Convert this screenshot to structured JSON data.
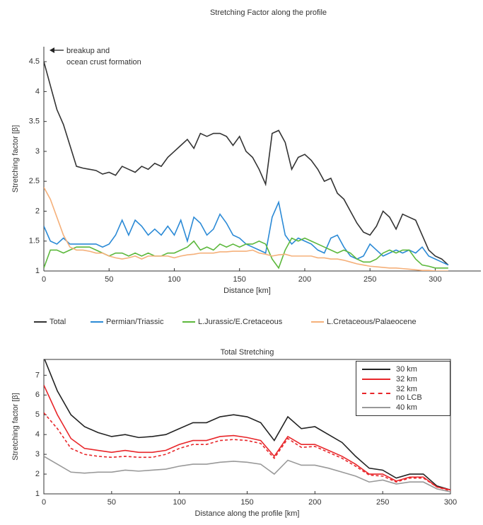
{
  "chart_data": [
    {
      "type": "line",
      "title": "Stretching Factor along the profile",
      "xlabel": "Distance  [km]",
      "ylabel": "Stretching factor [β]",
      "annotation": [
        "breakup and",
        "ocean crust formation"
      ],
      "xlim": [
        0,
        335
      ],
      "ylim": [
        1,
        4.75
      ],
      "xticks": [
        0,
        50,
        100,
        150,
        200,
        250,
        300
      ],
      "yticks": [
        1,
        1.5,
        2,
        2.5,
        3,
        3.5,
        4,
        4.5
      ],
      "legend": "below",
      "x": [
        0,
        5,
        10,
        15,
        20,
        25,
        30,
        35,
        40,
        45,
        50,
        55,
        60,
        65,
        70,
        75,
        80,
        85,
        90,
        95,
        100,
        105,
        110,
        115,
        120,
        125,
        130,
        135,
        140,
        145,
        150,
        155,
        160,
        165,
        170,
        175,
        180,
        185,
        190,
        195,
        200,
        205,
        210,
        215,
        220,
        225,
        230,
        235,
        240,
        245,
        250,
        255,
        260,
        265,
        270,
        275,
        280,
        285,
        290,
        295,
        300,
        305,
        310
      ],
      "series": [
        {
          "name": "Total",
          "color": "#333333",
          "values": [
            4.5,
            4.1,
            3.7,
            3.45,
            3.1,
            2.75,
            2.72,
            2.7,
            2.68,
            2.62,
            2.65,
            2.6,
            2.75,
            2.7,
            2.65,
            2.75,
            2.7,
            2.8,
            2.75,
            2.9,
            3.0,
            3.1,
            3.2,
            3.05,
            3.3,
            3.25,
            3.3,
            3.3,
            3.25,
            3.1,
            3.25,
            3.0,
            2.9,
            2.7,
            2.45,
            3.3,
            3.35,
            3.15,
            2.7,
            2.9,
            2.95,
            2.85,
            2.7,
            2.5,
            2.55,
            2.3,
            2.2,
            2.0,
            1.8,
            1.65,
            1.6,
            1.75,
            2.0,
            1.9,
            1.7,
            1.95,
            1.9,
            1.85,
            1.6,
            1.35,
            1.25,
            1.2,
            1.1
          ]
        },
        {
          "name": "Permian/Triassic",
          "color": "#2b8ad6",
          "values": [
            1.75,
            1.5,
            1.45,
            1.55,
            1.45,
            1.45,
            1.45,
            1.45,
            1.45,
            1.4,
            1.45,
            1.6,
            1.85,
            1.6,
            1.85,
            1.75,
            1.6,
            1.7,
            1.6,
            1.75,
            1.6,
            1.85,
            1.5,
            1.9,
            1.8,
            1.6,
            1.7,
            1.95,
            1.8,
            1.6,
            1.55,
            1.45,
            1.4,
            1.35,
            1.3,
            1.9,
            2.15,
            1.6,
            1.45,
            1.55,
            1.5,
            1.45,
            1.35,
            1.3,
            1.55,
            1.6,
            1.4,
            1.25,
            1.2,
            1.25,
            1.45,
            1.35,
            1.25,
            1.3,
            1.35,
            1.3,
            1.35,
            1.3,
            1.4,
            1.25,
            1.2,
            1.15,
            1.1
          ]
        },
        {
          "name": "L.Jurassic/E.Cretaceous",
          "color": "#5cb83c",
          "values": [
            1.05,
            1.35,
            1.35,
            1.3,
            1.35,
            1.4,
            1.4,
            1.4,
            1.35,
            1.3,
            1.25,
            1.3,
            1.3,
            1.25,
            1.3,
            1.25,
            1.3,
            1.25,
            1.25,
            1.3,
            1.3,
            1.35,
            1.4,
            1.5,
            1.35,
            1.4,
            1.35,
            1.45,
            1.4,
            1.45,
            1.4,
            1.45,
            1.45,
            1.5,
            1.45,
            1.2,
            1.05,
            1.35,
            1.55,
            1.5,
            1.55,
            1.5,
            1.45,
            1.4,
            1.35,
            1.3,
            1.35,
            1.3,
            1.2,
            1.15,
            1.15,
            1.2,
            1.3,
            1.35,
            1.3,
            1.35,
            1.35,
            1.2,
            1.1,
            1.08,
            1.05,
            1.05,
            1.05
          ]
        },
        {
          "name": "L.Cretaceous/Palaeocene",
          "color": "#f5b07a",
          "values": [
            2.4,
            2.2,
            1.9,
            1.6,
            1.4,
            1.35,
            1.35,
            1.33,
            1.3,
            1.3,
            1.25,
            1.22,
            1.2,
            1.22,
            1.25,
            1.2,
            1.25,
            1.25,
            1.25,
            1.25,
            1.22,
            1.25,
            1.27,
            1.28,
            1.3,
            1.3,
            1.3,
            1.32,
            1.32,
            1.33,
            1.33,
            1.33,
            1.35,
            1.3,
            1.28,
            1.25,
            1.27,
            1.28,
            1.25,
            1.25,
            1.25,
            1.25,
            1.22,
            1.22,
            1.2,
            1.2,
            1.18,
            1.15,
            1.12,
            1.1,
            1.08,
            1.07,
            1.06,
            1.05,
            1.05,
            1.04,
            1.03,
            1.02,
            1.01,
            1.01,
            1.0,
            1.0,
            1.0
          ]
        }
      ]
    },
    {
      "type": "line",
      "title": "Total Stretching",
      "xlabel": "Distance along the profile [km]",
      "ylabel": "Stretching factor [β]",
      "xlim": [
        0,
        300
      ],
      "ylim": [
        1,
        7.8
      ],
      "xticks": [
        0,
        50,
        100,
        150,
        200,
        250,
        300
      ],
      "yticks": [
        1,
        2,
        3,
        4,
        5,
        6,
        7
      ],
      "legend": "upper right",
      "x": [
        0,
        10,
        20,
        30,
        40,
        50,
        60,
        70,
        80,
        90,
        100,
        110,
        120,
        130,
        140,
        150,
        160,
        170,
        180,
        190,
        200,
        210,
        220,
        230,
        240,
        250,
        260,
        270,
        280,
        290,
        300
      ],
      "series": [
        {
          "name": "30 km",
          "color": "#222222",
          "linestyle": "solid",
          "values": [
            7.9,
            6.2,
            5.0,
            4.4,
            4.1,
            3.9,
            4.0,
            3.85,
            3.9,
            4.0,
            4.3,
            4.6,
            4.6,
            4.9,
            5.0,
            4.9,
            4.6,
            3.7,
            4.9,
            4.3,
            4.4,
            4.0,
            3.6,
            2.9,
            2.3,
            2.2,
            1.8,
            2.0,
            2.0,
            1.4,
            1.2
          ]
        },
        {
          "name": "32 km",
          "color": "#e8262a",
          "linestyle": "solid",
          "values": [
            6.5,
            5.0,
            3.8,
            3.3,
            3.2,
            3.1,
            3.2,
            3.1,
            3.1,
            3.2,
            3.5,
            3.7,
            3.7,
            3.9,
            3.95,
            3.85,
            3.7,
            2.9,
            3.9,
            3.5,
            3.5,
            3.2,
            2.9,
            2.5,
            2.0,
            2.0,
            1.65,
            1.85,
            1.85,
            1.35,
            1.2
          ]
        },
        {
          "name": "32 km\nno LCB",
          "color": "#e8262a",
          "linestyle": "dashed",
          "values": [
            5.1,
            4.3,
            3.3,
            3.0,
            2.9,
            2.85,
            2.9,
            2.85,
            2.85,
            3.0,
            3.3,
            3.5,
            3.5,
            3.7,
            3.75,
            3.7,
            3.55,
            2.8,
            3.8,
            3.35,
            3.4,
            3.1,
            2.8,
            2.4,
            1.95,
            1.9,
            1.6,
            1.8,
            1.8,
            1.35,
            1.15
          ]
        },
        {
          "name": "40 km",
          "color": "#999999",
          "linestyle": "solid",
          "values": [
            2.9,
            2.5,
            2.1,
            2.05,
            2.1,
            2.1,
            2.2,
            2.15,
            2.2,
            2.25,
            2.4,
            2.5,
            2.5,
            2.6,
            2.65,
            2.6,
            2.5,
            2.0,
            2.7,
            2.45,
            2.45,
            2.3,
            2.1,
            1.9,
            1.6,
            1.7,
            1.5,
            1.6,
            1.6,
            1.25,
            1.1
          ]
        }
      ]
    }
  ]
}
